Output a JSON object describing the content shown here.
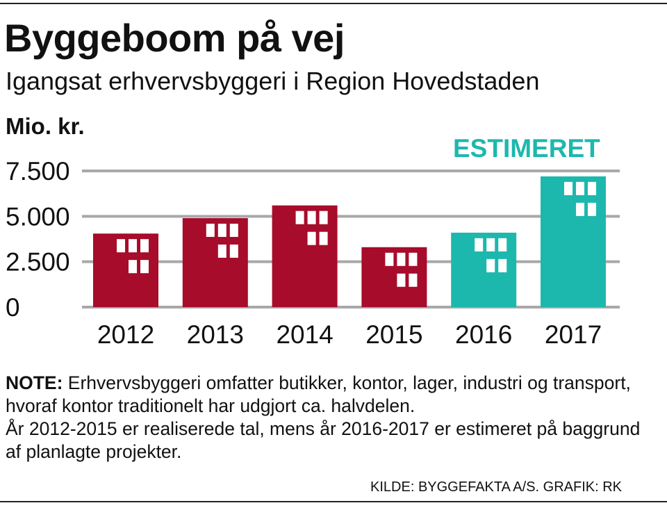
{
  "title": "Byggeboom på vej",
  "subtitle": "Igangsat erhvervsbyggeri i Region Hovedstaden",
  "y_unit_label": "Mio. kr.",
  "estimate_label": "ESTIMERET",
  "colors": {
    "realized": "#a70c2b",
    "estimated": "#1db8ad",
    "grid": "#a8a8a8",
    "window": "#ffffff"
  },
  "chart_data": {
    "type": "bar",
    "title": "Byggeboom på vej",
    "subtitle": "Igangsat erhvervsbyggeri i Region Hovedstaden",
    "xlabel": "",
    "ylabel": "Mio. kr.",
    "categories": [
      "2012",
      "2013",
      "2014",
      "2015",
      "2016",
      "2017"
    ],
    "values": [
      4050,
      4900,
      5600,
      3300,
      4100,
      7200
    ],
    "status": [
      "realized",
      "realized",
      "realized",
      "realized",
      "estimated",
      "estimated"
    ],
    "ylim": [
      0,
      7500
    ],
    "yticks": [
      0,
      2500,
      5000,
      7500
    ],
    "ytick_labels": [
      "0",
      "2.500",
      "5.000",
      "7.500"
    ],
    "grid": true,
    "annotation": "ESTIMERET"
  },
  "note": {
    "label": "NOTE:",
    "line1": " Erhvervsbyggeri omfatter butikker, kontor, lager, industri og transport, hvoraf kontor traditionelt har udgjort ca. halvdelen.",
    "line2": "År 2012-2015 er realiserede tal, mens år 2016-2017 er estimeret på baggrund af planlagte projekter."
  },
  "source": "KILDE: BYGGEFAKTA A/S. GRAFIK: RK"
}
